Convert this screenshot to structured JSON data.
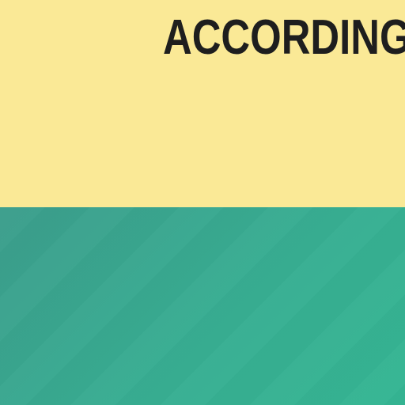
{
  "heading": {
    "text": "ACCORDING"
  },
  "colors": {
    "top_background": "#fae996",
    "bottom_background_start": "#3c9e8c",
    "bottom_background_end": "#35b693",
    "heading_text": "#1e1e1e"
  }
}
